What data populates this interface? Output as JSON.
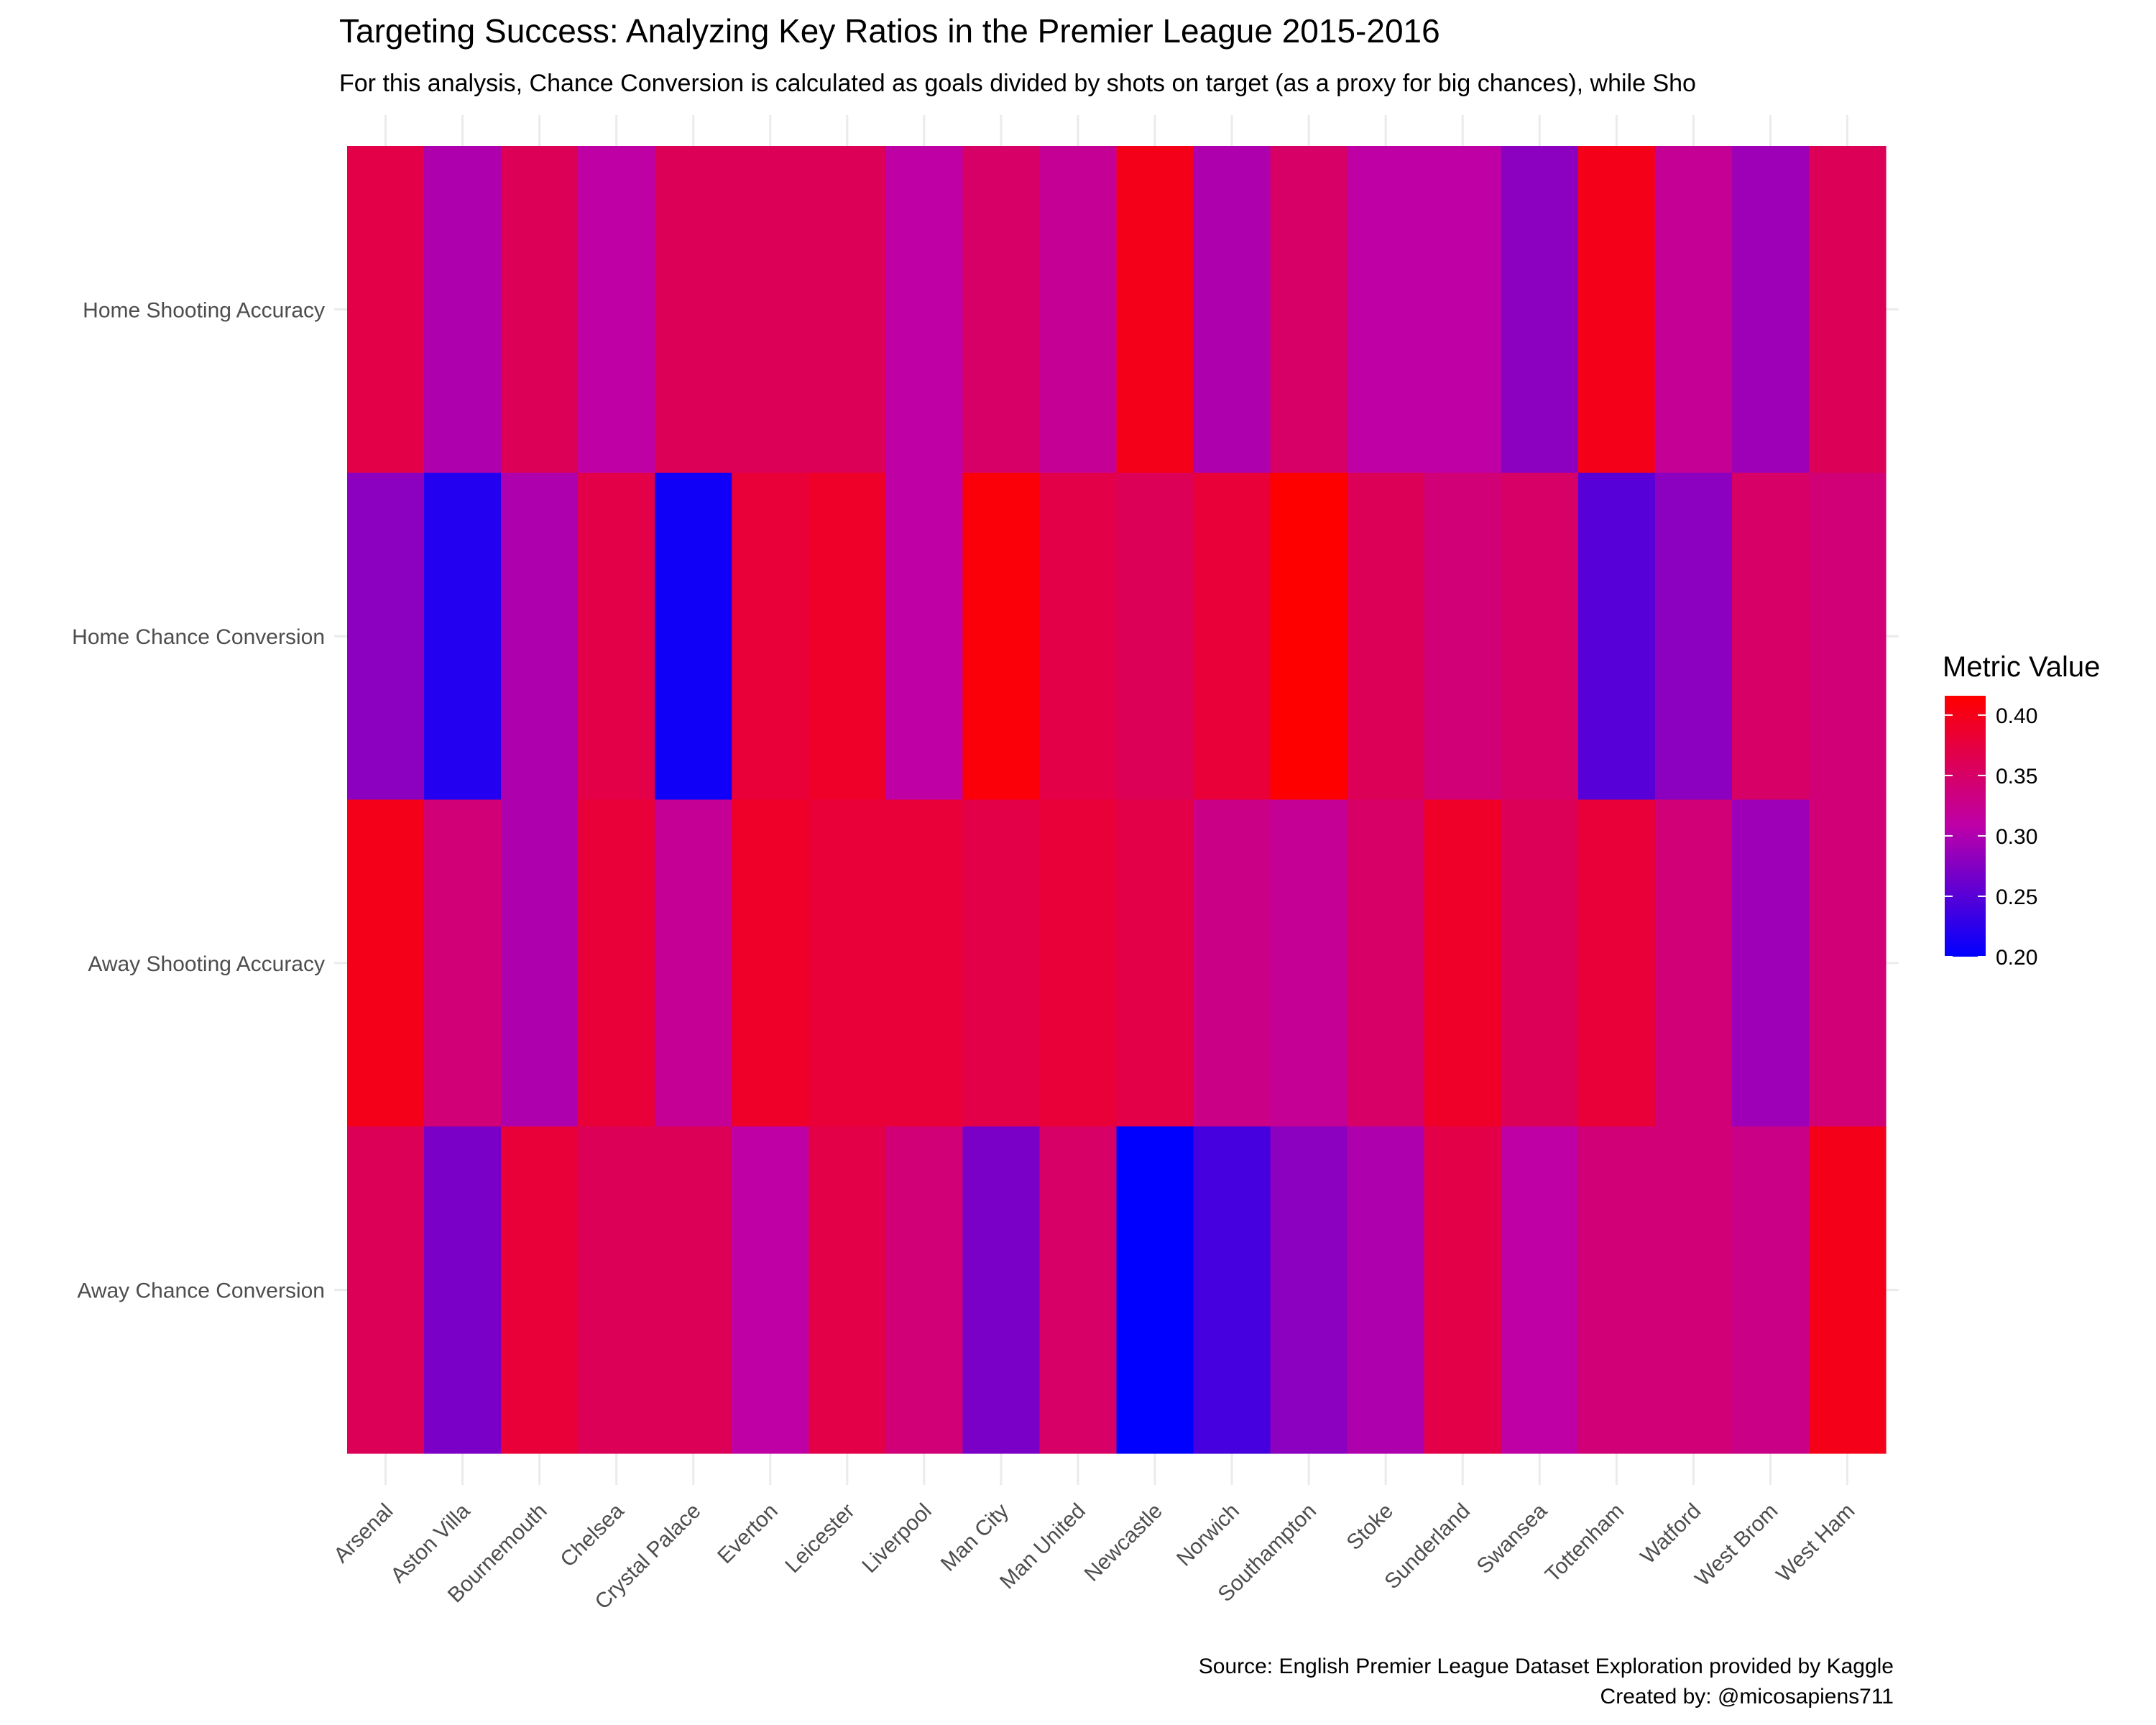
{
  "chart_data": {
    "type": "heatmap",
    "title": "Targeting Success: Analyzing Key Ratios in the Premier League 2015-2016",
    "subtitle": "For this analysis, Chance Conversion is calculated as goals divided by shots on target (as a proxy for big chances), while Sho",
    "caption": [
      "Source: English Premier League Dataset Exploration provided by Kaggle",
      "Created by: @micosapiens711"
    ],
    "x_categories": [
      "Arsenal",
      "Aston Villa",
      "Bournemouth",
      "Chelsea",
      "Crystal Palace",
      "Everton",
      "Leicester",
      "Liverpool",
      "Man City",
      "Man United",
      "Newcastle",
      "Norwich",
      "Southampton",
      "Stoke",
      "Sunderland",
      "Swansea",
      "Tottenham",
      "Watford",
      "West Brom",
      "West Ham"
    ],
    "y_categories": [
      "Home Shooting Accuracy",
      "Home Chance Conversion",
      "Away Shooting Accuracy",
      "Away Chance Conversion"
    ],
    "values": [
      [
        0.37,
        0.3,
        0.36,
        0.31,
        0.36,
        0.36,
        0.36,
        0.31,
        0.35,
        0.32,
        0.4,
        0.3,
        0.35,
        0.31,
        0.31,
        0.28,
        0.4,
        0.32,
        0.29,
        0.36
      ],
      [
        0.28,
        0.22,
        0.3,
        0.37,
        0.21,
        0.38,
        0.39,
        0.31,
        0.41,
        0.37,
        0.36,
        0.38,
        0.42,
        0.36,
        0.34,
        0.35,
        0.25,
        0.28,
        0.35,
        0.34
      ],
      [
        0.4,
        0.34,
        0.3,
        0.38,
        0.32,
        0.39,
        0.38,
        0.38,
        0.37,
        0.38,
        0.37,
        0.33,
        0.32,
        0.35,
        0.39,
        0.36,
        0.38,
        0.34,
        0.29,
        0.34
      ],
      [
        0.36,
        0.27,
        0.38,
        0.36,
        0.36,
        0.31,
        0.37,
        0.34,
        0.27,
        0.35,
        0.2,
        0.24,
        0.28,
        0.3,
        0.37,
        0.31,
        0.34,
        0.34,
        0.33,
        0.4
      ]
    ],
    "colorbar": {
      "title": "Metric Value",
      "ticks": [
        "0.20",
        "0.25",
        "0.30",
        "0.35",
        "0.40"
      ],
      "min": 0.2,
      "max": 0.416,
      "low_color": "#0000ff",
      "high_color": "#ff0000"
    },
    "grid": true,
    "legend_position": "right"
  }
}
